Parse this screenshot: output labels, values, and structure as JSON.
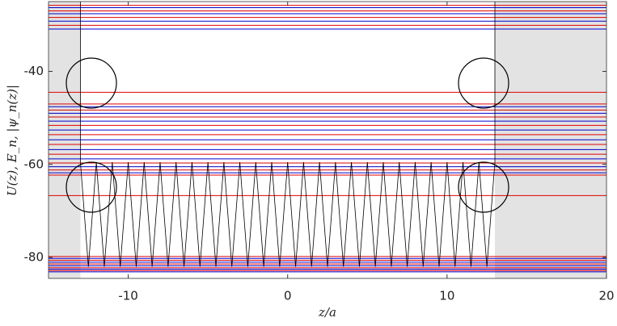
{
  "chart_data": {
    "type": "line",
    "x_label": "z/a",
    "y_label": "U(z),  E_n,  |ψ_n(z)|",
    "xlim": [
      -15,
      20
    ],
    "ylim": [
      -84.5,
      -25
    ],
    "xticks": [
      -10,
      0,
      10,
      20
    ],
    "yticks": [
      -40,
      -60,
      -80
    ],
    "shaded_x": [
      [
        -15,
        -13
      ],
      [
        13,
        20
      ]
    ],
    "potential": {
      "color": "#000000",
      "x": [
        -13,
        -13,
        -12.5,
        -12,
        -11.5,
        -11,
        -10.5,
        -10,
        -9.5,
        -9,
        -8.5,
        -8,
        -7.5,
        -7,
        -6.5,
        -6,
        -5.5,
        -5,
        -4.5,
        -4,
        -3.5,
        -3,
        -2.5,
        -2,
        -1.5,
        -1,
        -0.5,
        0,
        0.5,
        1,
        1.5,
        2,
        2.5,
        3,
        3.5,
        4,
        4.5,
        5,
        5.5,
        6,
        6.5,
        7,
        7.5,
        8,
        8.5,
        9,
        9.5,
        10,
        10.5,
        11,
        11.5,
        12,
        12.5,
        13,
        13
      ],
      "values": [
        -25,
        -59.5,
        -82,
        -59.5,
        -82,
        -59.5,
        -82,
        -59.5,
        -82,
        -59.5,
        -82,
        -59.5,
        -82,
        -59.5,
        -82,
        -59.5,
        -82,
        -59.5,
        -82,
        -59.5,
        -82,
        -59.5,
        -82,
        -59.5,
        -82,
        -59.5,
        -82,
        -59.5,
        -82,
        -59.5,
        -82,
        -59.5,
        -82,
        -59.5,
        -82,
        -59.5,
        -82,
        -59.5,
        -82,
        -59.5,
        -82,
        -59.5,
        -82,
        -59.5,
        -82,
        -59.5,
        -82,
        -59.5,
        -82,
        -59.5,
        -82,
        -59.5,
        -82,
        -59.5,
        -25
      ]
    },
    "levels": [
      -25.8,
      -26.3,
      -27,
      -27.6,
      -28.4,
      -29.2,
      -30.1,
      -30.9,
      -44.5,
      -47,
      -47.6,
      -48.3,
      -49,
      -49.8,
      -50.7,
      -51.6,
      -52.6,
      -53.6,
      -54.7,
      -55.7,
      -56.8,
      -57.8,
      -58.8,
      -59.7,
      -60.5,
      -61.2,
      -61.8,
      -62.3,
      -66.7,
      -79.8,
      -80.2,
      -80.6,
      -81,
      -81.4,
      -81.8,
      -82.2,
      -82.5,
      -82.8,
      -83.1
    ],
    "level_colors": [
      "#e00000",
      "#0000d0",
      "#e00000",
      "#0000d0",
      "#e00000",
      "#0000d0",
      "#e00000",
      "#0000d0",
      "#e00000",
      "#e00000",
      "#0000d0",
      "#e00000",
      "#0000d0",
      "#e00000",
      "#0000d0",
      "#e00000",
      "#0000d0",
      "#e00000",
      "#0000d0",
      "#e00000",
      "#0000d0",
      "#e00000",
      "#0000d0",
      "#e00000",
      "#0000d0",
      "#e00000",
      "#0000d0",
      "#e00000",
      "#e00000",
      "#e00000",
      "#0000d0",
      "#e00000",
      "#0000d0",
      "#e00000",
      "#0000d0",
      "#e00000",
      "#0000d0",
      "#e00000",
      "#0000d0"
    ]
  }
}
